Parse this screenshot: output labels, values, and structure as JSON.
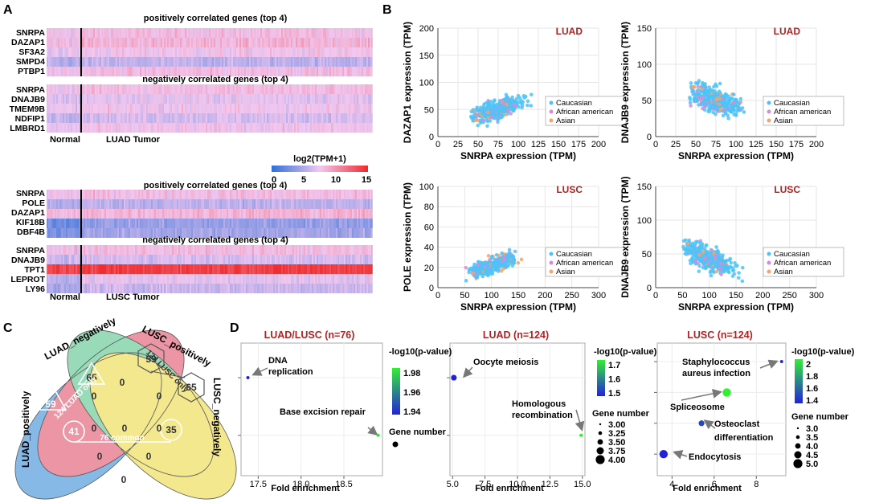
{
  "panels": {
    "A": "A",
    "B": "B",
    "C": "C",
    "D": "D"
  },
  "colors": {
    "low": "#2f6fd9",
    "mid": "#d8a8dc",
    "high": "#ee2a2a",
    "title_red": "#b22222",
    "caucasian": "#4fc3f7",
    "african_american": "#d98bd9",
    "asian": "#f4a36b"
  },
  "panelA": {
    "luad": {
      "pos_title": "positively correlated genes (top 4)",
      "pos_genes": [
        "SNRPA",
        "DAZAP1",
        "SF3A2",
        "SMPD4",
        "PTBP1"
      ],
      "neg_title": "negatively correlated genes (top 4)",
      "neg_genes": [
        "SNRPA",
        "DNAJB9",
        "TMEM9B",
        "NDFIP1",
        "LMBRD1"
      ],
      "normal_label": "Normal",
      "tumor_label": "LUAD Tumor"
    },
    "legend": {
      "title": "log2(TPM+1)",
      "ticks": [
        "0",
        "5",
        "10",
        "15"
      ]
    },
    "lusc": {
      "pos_title": "positively correlated genes (top 4)",
      "pos_genes": [
        "SNRPA",
        "POLE",
        "DAZAP1",
        "KIF18B",
        "DBF4B"
      ],
      "neg_title": "negatively correlated genes (top 4)",
      "neg_genes": [
        "SNRPA",
        "DNAJB9",
        "TPT1",
        "LEPROT",
        "LY96"
      ],
      "normal_label": "Normal",
      "tumor_label": "LUSC Tumor"
    }
  },
  "chart_data": [
    {
      "type": "heatmap",
      "title": "LUAD positively correlated genes (top 4)",
      "rows": [
        "SNRPA",
        "DAZAP1",
        "SF3A2",
        "SMPD4",
        "PTBP1"
      ],
      "groups": [
        "Normal",
        "LUAD Tumor"
      ],
      "row_levels": [
        8,
        8.5,
        7.5,
        5.5,
        8
      ],
      "color_range": [
        0,
        15
      ]
    },
    {
      "type": "heatmap",
      "title": "LUAD negatively correlated genes (top 4)",
      "rows": [
        "SNRPA",
        "DNAJB9",
        "TMEM9B",
        "NDFIP1",
        "LMBRD1"
      ],
      "groups": [
        "Normal",
        "LUAD Tumor"
      ],
      "row_levels": [
        8,
        7,
        7.5,
        6.5,
        7.5
      ],
      "color_range": [
        0,
        15
      ]
    },
    {
      "type": "heatmap",
      "title": "LUSC positively correlated genes (top 4)",
      "rows": [
        "SNRPA",
        "POLE",
        "DAZAP1",
        "KIF18B",
        "DBF4B"
      ],
      "groups": [
        "Normal",
        "LUSC Tumor"
      ],
      "row_levels": [
        8,
        5.5,
        8.5,
        4,
        4.5
      ],
      "color_range": [
        0,
        15
      ]
    },
    {
      "type": "heatmap",
      "title": "LUSC negatively correlated genes (top 4)",
      "rows": [
        "SNRPA",
        "DNAJB9",
        "TPT1",
        "LEPROT",
        "LY96"
      ],
      "groups": [
        "Normal",
        "LUSC Tumor"
      ],
      "row_levels": [
        8,
        6.5,
        14,
        7,
        6
      ],
      "color_range": [
        0,
        15
      ]
    },
    {
      "type": "scatter",
      "cohort": "LUAD",
      "xlabel": "SNRPA expression (TPM)",
      "ylabel": "DAZAP1 expression (TPM)",
      "xlim": [
        0,
        200
      ],
      "ylim": [
        0,
        200
      ],
      "xticks": [
        "0",
        "25",
        "50",
        "75",
        "100",
        "125",
        "150",
        "175",
        "200"
      ],
      "yticks": [
        "0",
        "50",
        "100",
        "150",
        "200"
      ],
      "trend": "positive",
      "legend": [
        "Caucasian",
        "African american",
        "Asian"
      ]
    },
    {
      "type": "scatter",
      "cohort": "LUAD",
      "xlabel": "SNRPA expression (TPM)",
      "ylabel": "DNAJB9 expression (TPM)",
      "xlim": [
        0,
        200
      ],
      "ylim": [
        0,
        150
      ],
      "xticks": [
        "0",
        "25",
        "50",
        "75",
        "100",
        "125",
        "150",
        "175",
        "200"
      ],
      "yticks": [
        "0",
        "50",
        "100",
        "150"
      ],
      "trend": "negative",
      "legend": [
        "Caucasian",
        "African american",
        "Asian"
      ]
    },
    {
      "type": "scatter",
      "cohort": "LUSC",
      "xlabel": "SNRPA expression (TPM)",
      "ylabel": "POLE expression (TPM)",
      "xlim": [
        0,
        300
      ],
      "ylim": [
        0,
        100
      ],
      "xticks": [
        "0",
        "50",
        "100",
        "150",
        "200",
        "250",
        "300"
      ],
      "yticks": [
        "0",
        "20",
        "40",
        "60",
        "80",
        "100"
      ],
      "trend": "positive",
      "legend": [
        "Caucasian",
        "African american",
        "Asian"
      ]
    },
    {
      "type": "scatter",
      "cohort": "LUSC",
      "xlabel": "SNRPA expression (TPM)",
      "ylabel": "DNAJB9 expression (TPM)",
      "xlim": [
        0,
        300
      ],
      "ylim": [
        0,
        150
      ],
      "xticks": [
        "0",
        "50",
        "100",
        "150",
        "200",
        "250",
        "300"
      ],
      "yticks": [
        "0",
        "50",
        "100",
        "150"
      ],
      "trend": "negative",
      "legend": [
        "Caucasian",
        "African american",
        "Asian"
      ]
    },
    {
      "type": "venn",
      "sets": [
        "LUAD_positively",
        "LUAD_negatively",
        "LUSC_positively",
        "LUSC_negatively"
      ],
      "regions": [
        {
          "label": "LUAD_positively only",
          "value": 59
        },
        {
          "label": "LUAD_negatively only",
          "value": 65
        },
        {
          "label": "LUSC_positively only",
          "value": 59
        },
        {
          "label": "LUSC_negatively only",
          "value": 65
        },
        {
          "label": "LUAD pos & neg",
          "value": 0
        },
        {
          "label": "LUSC pos & neg",
          "value": 0
        },
        {
          "label": "LUAD_neg & LUSC_pos",
          "value": 0
        },
        {
          "label": "LUAD_pos & LUSC_pos",
          "value": 0
        },
        {
          "label": "LUAD_neg & LUSC_neg",
          "value": 0
        },
        {
          "label": "LUAD_pos & LUSC_neg",
          "value": 41
        },
        {
          "label": "LUAD_neg & LUSC_pos (mid)",
          "value": 35
        },
        {
          "label": "four-way",
          "value": 0
        },
        {
          "label": "other",
          "value": 0
        },
        {
          "label": "other",
          "value": 0
        },
        {
          "label": "other",
          "value": 0
        }
      ],
      "annotations": [
        "124 LUAD only",
        "124 LUSC only",
        "76 common"
      ]
    },
    {
      "type": "scatter",
      "title": "LUAD/LUSC (n=76)",
      "xlabel": "Fold enrichment",
      "xticks": [
        "17.5",
        "18.0",
        "18.5"
      ],
      "xlim": [
        17.3,
        18.95
      ],
      "points": [
        {
          "term": "DNA replication",
          "x": 17.38,
          "p": 1.93,
          "genes": 3
        },
        {
          "term": "Base excision repair",
          "x": 18.9,
          "p": 1.99,
          "genes": 3
        }
      ],
      "color_ticks": [
        "1.98",
        "1.96",
        "1.94"
      ],
      "color_title": "-log10(p-value)",
      "size_title": "Gene number"
    },
    {
      "type": "scatter",
      "title": "LUAD (n=124)",
      "xlabel": "Fold enrichment",
      "xticks": [
        "5.0",
        "7.5",
        "10.0",
        "12.5",
        "15.0"
      ],
      "xlim": [
        4.8,
        15.2
      ],
      "points": [
        {
          "term": "Oocyte meiosis",
          "x": 5.1,
          "p": 1.4,
          "genes": 4
        },
        {
          "term": "Homologous recombination",
          "x": 14.9,
          "p": 1.75,
          "genes": 3
        }
      ],
      "color_ticks": [
        "1.7",
        "1.6",
        "1.5"
      ],
      "color_title": "-log10(p-value)",
      "size_title": "Gene number",
      "size_ticks": [
        "3.00",
        "3.25",
        "3.50",
        "3.75",
        "4.00"
      ]
    },
    {
      "type": "scatter",
      "title": "LUSC (n=124)",
      "xlabel": "Fold enrichment",
      "xticks": [
        "4",
        "6",
        "8"
      ],
      "xlim": [
        3.3,
        9.4
      ],
      "points": [
        {
          "term": "Staphylococcus aureus infection",
          "x": 9.2,
          "p": 1.35,
          "genes": 3
        },
        {
          "term": "Spliceosome",
          "x": 6.6,
          "p": 2.1,
          "genes": 5
        },
        {
          "term": "Osteoclast differentiation",
          "x": 5.4,
          "p": 1.45,
          "genes": 4
        },
        {
          "term": "Endocytosis",
          "x": 3.6,
          "p": 1.3,
          "genes": 5
        }
      ],
      "color_ticks": [
        "2",
        "1.8",
        "1.6",
        "1.4"
      ],
      "color_title": "-log10(p-value)",
      "size_title": "Gene number",
      "size_ticks": [
        "3.0",
        "3.5",
        "4.0",
        "4.5",
        "5.0"
      ]
    }
  ],
  "panelB": {
    "cohort_luad": "LUAD",
    "cohort_lusc": "LUSC",
    "legend": [
      "Caucasian",
      "African american",
      "Asian"
    ]
  },
  "panelC": {
    "set_labels": [
      "LUAD_positively",
      "LUAD_negatively",
      "LUSC_positively",
      "LUSC_negatively"
    ],
    "numbers": {
      "luad_pos_only": "59",
      "luad_neg_only": "65",
      "lusc_pos_only": "59",
      "lusc_neg_only": "65",
      "pos_pos": "41",
      "neg_pos": "35",
      "z1": "0",
      "z2": "0",
      "z3": "0",
      "z4": "0",
      "z5": "0",
      "z6": "0",
      "z7": "0",
      "z8": "0",
      "z9": "0"
    },
    "luad_only": "124 LUAD only",
    "lusc_only": "124 LUSC only",
    "common": "76 common"
  },
  "panelD": {
    "titles": [
      "LUAD/LUSC (n=76)",
      "LUAD (n=124)",
      "LUSC (n=124)"
    ],
    "xlabel": "Fold enrichment",
    "color_title": "-log10(p-value)",
    "size_title": "Gene number",
    "terms": {
      "dna_replication_1": "DNA",
      "dna_replication_2": "replication",
      "ber": "Base excision repair",
      "oocyte": "Oocyte meiosis",
      "homrec_1": "Homologous",
      "homrec_2": "recombination",
      "staph_1": "Staphylococcus",
      "staph_2": "aureus infection",
      "spliceosome": "Spliceosome",
      "osteo_1": "Osteoclast",
      "osteo_2": "differentiation",
      "endocytosis": "Endocytosis"
    },
    "cbar1": [
      "1.98",
      "1.96",
      "1.94"
    ],
    "cbar2": [
      "1.7",
      "1.6",
      "1.5"
    ],
    "cbar3": [
      "2",
      "1.8",
      "1.6",
      "1.4"
    ],
    "size2": [
      "3.00",
      "3.25",
      "3.50",
      "3.75",
      "4.00"
    ],
    "size3": [
      "3.0",
      "3.5",
      "4.0",
      "4.5",
      "5.0"
    ]
  }
}
